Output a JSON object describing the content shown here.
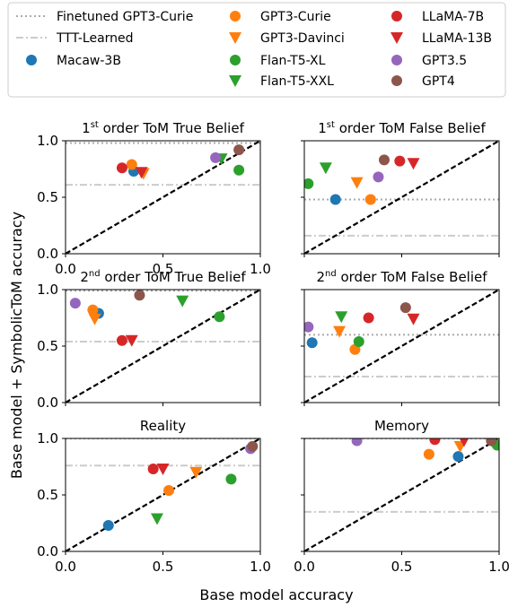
{
  "figure": {
    "xlabel": "Base model accuracy",
    "ylabel": "Base model + SymbolicToM accuracy"
  },
  "legend": [
    {
      "label": "Finetuned GPT3-Curie",
      "kind": "dotted-line",
      "color": "#aaaaaa"
    },
    {
      "label": "TTT-Learned",
      "kind": "dashdot-line",
      "color": "#cccccc"
    },
    {
      "label": "Macaw-3B",
      "kind": "circle",
      "color": "#1f77b4"
    },
    {
      "label": "GPT3-Curie",
      "kind": "circle",
      "color": "#ff7f0e"
    },
    {
      "label": "GPT3-Davinci",
      "kind": "triangle",
      "color": "#ff7f0e"
    },
    {
      "label": "Flan-T5-XL",
      "kind": "circle",
      "color": "#2ca02c"
    },
    {
      "label": "Flan-T5-XXL",
      "kind": "triangle",
      "color": "#2ca02c"
    },
    {
      "label": "LLaMA-7B",
      "kind": "circle",
      "color": "#d62728"
    },
    {
      "label": "LLaMA-13B",
      "kind": "triangle",
      "color": "#d62728"
    },
    {
      "label": "GPT3.5",
      "kind": "circle",
      "color": "#9467bd"
    },
    {
      "label": "GPT4",
      "kind": "circle",
      "color": "#8c564b"
    }
  ],
  "chart_data": [
    {
      "type": "scatter",
      "title_main": "1",
      "title_sup": "st",
      "title_rest": " order ToM True Belief",
      "xlim": [
        0,
        1
      ],
      "ylim": [
        0,
        1
      ],
      "xticks": [
        "0.0",
        "0.5",
        "1.0"
      ],
      "yticks": [
        "0.0",
        "0.5",
        "1.0"
      ],
      "finetuned": 0.98,
      "ttt": 0.61,
      "points": [
        {
          "model": "Macaw-3B",
          "x": 0.35,
          "y": 0.73
        },
        {
          "model": "GPT3-Curie",
          "x": 0.34,
          "y": 0.79
        },
        {
          "model": "GPT3-Davinci",
          "x": 0.4,
          "y": 0.71
        },
        {
          "model": "Flan-T5-XL",
          "x": 0.89,
          "y": 0.74
        },
        {
          "model": "Flan-T5-XXL",
          "x": 0.8,
          "y": 0.84
        },
        {
          "model": "LLaMA-7B",
          "x": 0.29,
          "y": 0.76
        },
        {
          "model": "LLaMA-13B",
          "x": 0.39,
          "y": 0.72
        },
        {
          "model": "GPT3.5",
          "x": 0.77,
          "y": 0.85
        },
        {
          "model": "GPT4",
          "x": 0.89,
          "y": 0.92
        }
      ]
    },
    {
      "type": "scatter",
      "title_main": "1",
      "title_sup": "st",
      "title_rest": " order ToM False Belief",
      "xlim": [
        0,
        1
      ],
      "ylim": [
        0,
        1
      ],
      "xticks": [],
      "yticks": [],
      "finetuned": 0.48,
      "ttt": 0.16,
      "points": [
        {
          "model": "Macaw-3B",
          "x": 0.16,
          "y": 0.48
        },
        {
          "model": "GPT3-Curie",
          "x": 0.34,
          "y": 0.48
        },
        {
          "model": "GPT3-Davinci",
          "x": 0.27,
          "y": 0.63
        },
        {
          "model": "Flan-T5-XL",
          "x": 0.02,
          "y": 0.62
        },
        {
          "model": "Flan-T5-XXL",
          "x": 0.11,
          "y": 0.76
        },
        {
          "model": "LLaMA-7B",
          "x": 0.49,
          "y": 0.82
        },
        {
          "model": "LLaMA-13B",
          "x": 0.56,
          "y": 0.8
        },
        {
          "model": "GPT3.5",
          "x": 0.38,
          "y": 0.68
        },
        {
          "model": "GPT4",
          "x": 0.41,
          "y": 0.83
        }
      ]
    },
    {
      "type": "scatter",
      "title_main": "2",
      "title_sup": "nd",
      "title_rest": " order ToM True Belief",
      "xlim": [
        0,
        1
      ],
      "ylim": [
        0,
        1
      ],
      "xticks": [],
      "yticks": [
        "0.0",
        "0.5",
        "1.0"
      ],
      "finetuned": 0.99,
      "ttt": 0.54,
      "points": [
        {
          "model": "Macaw-3B",
          "x": 0.17,
          "y": 0.79
        },
        {
          "model": "GPT3-Curie",
          "x": 0.14,
          "y": 0.82
        },
        {
          "model": "GPT3-Davinci",
          "x": 0.15,
          "y": 0.74
        },
        {
          "model": "Flan-T5-XL",
          "x": 0.79,
          "y": 0.76
        },
        {
          "model": "Flan-T5-XXL",
          "x": 0.6,
          "y": 0.9
        },
        {
          "model": "LLaMA-7B",
          "x": 0.29,
          "y": 0.55
        },
        {
          "model": "LLaMA-13B",
          "x": 0.34,
          "y": 0.55
        },
        {
          "model": "GPT3.5",
          "x": 0.05,
          "y": 0.88
        },
        {
          "model": "GPT4",
          "x": 0.38,
          "y": 0.95
        }
      ]
    },
    {
      "type": "scatter",
      "title_main": "2",
      "title_sup": "nd",
      "title_rest": " order ToM False Belief",
      "xlim": [
        0,
        1
      ],
      "ylim": [
        0,
        1
      ],
      "xticks": [],
      "yticks": [],
      "finetuned": 0.6,
      "ttt": 0.23,
      "points": [
        {
          "model": "Macaw-3B",
          "x": 0.04,
          "y": 0.53
        },
        {
          "model": "GPT3-Curie",
          "x": 0.26,
          "y": 0.47
        },
        {
          "model": "GPT3-Davinci",
          "x": 0.18,
          "y": 0.63
        },
        {
          "model": "Flan-T5-XL",
          "x": 0.28,
          "y": 0.54
        },
        {
          "model": "Flan-T5-XXL",
          "x": 0.19,
          "y": 0.76
        },
        {
          "model": "LLaMA-7B",
          "x": 0.33,
          "y": 0.75
        },
        {
          "model": "LLaMA-13B",
          "x": 0.56,
          "y": 0.74
        },
        {
          "model": "GPT3.5",
          "x": 0.02,
          "y": 0.67
        },
        {
          "model": "GPT4",
          "x": 0.52,
          "y": 0.84
        }
      ]
    },
    {
      "type": "scatter",
      "title_main": "Reality",
      "title_sup": "",
      "title_rest": "",
      "xlim": [
        0,
        1
      ],
      "ylim": [
        0,
        1
      ],
      "xticks": [
        "0.0",
        "0.5",
        "1.0"
      ],
      "yticks": [
        "0.0",
        "0.5",
        "1.0"
      ],
      "finetuned": 1.0,
      "ttt": 0.76,
      "points": [
        {
          "model": "Macaw-3B",
          "x": 0.22,
          "y": 0.23
        },
        {
          "model": "GPT3-Curie",
          "x": 0.53,
          "y": 0.54
        },
        {
          "model": "GPT3-Davinci",
          "x": 0.67,
          "y": 0.7
        },
        {
          "model": "Flan-T5-XL",
          "x": 0.85,
          "y": 0.64
        },
        {
          "model": "Flan-T5-XXL",
          "x": 0.47,
          "y": 0.29
        },
        {
          "model": "LLaMA-7B",
          "x": 0.45,
          "y": 0.73
        },
        {
          "model": "LLaMA-13B",
          "x": 0.5,
          "y": 0.73
        },
        {
          "model": "GPT3.5",
          "x": 0.95,
          "y": 0.91
        },
        {
          "model": "GPT4",
          "x": 0.96,
          "y": 0.93
        }
      ]
    },
    {
      "type": "scatter",
      "title_main": "Memory",
      "title_sup": "",
      "title_rest": "",
      "xlim": [
        0,
        1
      ],
      "ylim": [
        0,
        1
      ],
      "xticks": [
        "0.0",
        "0.5",
        "1.0"
      ],
      "yticks": [],
      "finetuned": 1.0,
      "ttt": 0.35,
      "points": [
        {
          "model": "Macaw-3B",
          "x": 0.79,
          "y": 0.84
        },
        {
          "model": "GPT3-Curie",
          "x": 0.64,
          "y": 0.86
        },
        {
          "model": "GPT3-Davinci",
          "x": 0.8,
          "y": 0.93
        },
        {
          "model": "Flan-T5-XL",
          "x": 0.99,
          "y": 0.94
        },
        {
          "model": "Flan-T5-XXL",
          "x": 0.96,
          "y": 0.98
        },
        {
          "model": "LLaMA-7B",
          "x": 0.67,
          "y": 0.99
        },
        {
          "model": "LLaMA-13B",
          "x": 0.82,
          "y": 0.98
        },
        {
          "model": "GPT3.5",
          "x": 0.27,
          "y": 0.98
        },
        {
          "model": "GPT4",
          "x": 0.96,
          "y": 0.98
        }
      ]
    }
  ]
}
